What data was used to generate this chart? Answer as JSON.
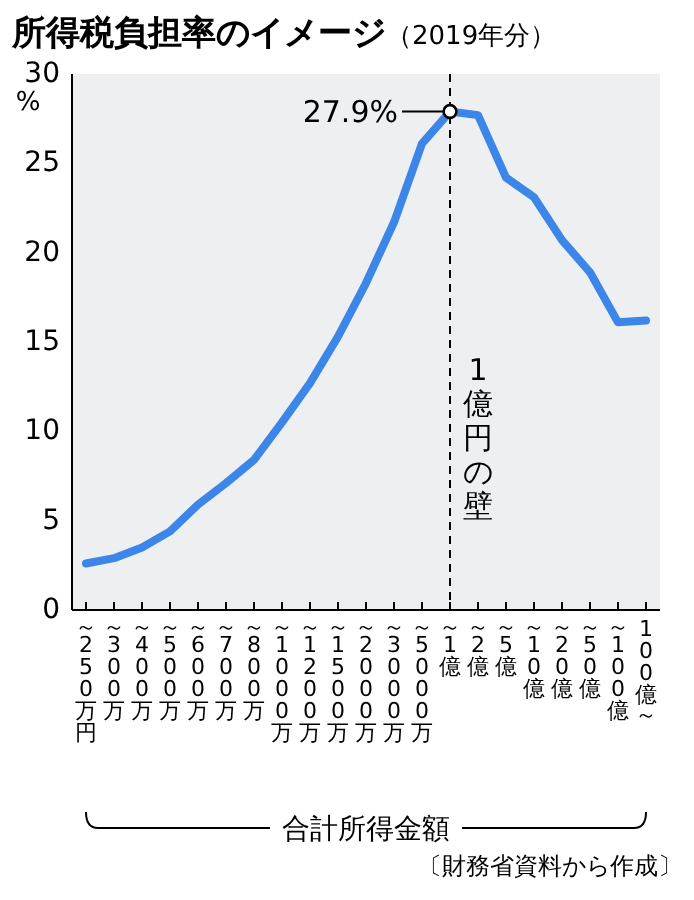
{
  "chart_data": {
    "type": "line",
    "title": "所得税負担率のイメージ",
    "subtitle": "（2019年分）",
    "ylabel": "%",
    "xlabel": "合計所得金額",
    "categories": [
      "～250万円",
      "～300万",
      "～400万",
      "～500万",
      "～600万",
      "～700万",
      "～800万",
      "～1000万",
      "～1200万",
      "～1500万",
      "～2000万",
      "～3000万",
      "～5000万",
      "～1億",
      "～2億",
      "～5億",
      "～10億",
      "～20億",
      "～50億",
      "～100億",
      "100億～"
    ],
    "series": [
      {
        "color": "#3b86e8",
        "values": [
          2.6,
          2.9,
          3.5,
          4.4,
          5.9,
          7.1,
          8.4,
          10.5,
          12.7,
          15.3,
          18.3,
          21.7,
          26.1,
          27.9,
          27.7,
          24.2,
          23.1,
          20.7,
          18.9,
          16.1,
          16.2
        ]
      }
    ],
    "ylim": [
      0,
      30
    ],
    "yticks": [
      0,
      5,
      10,
      15,
      20,
      25,
      30
    ],
    "grid": false,
    "marker": "none",
    "line_style": "solid",
    "ref_lines": [
      {
        "axis": "x",
        "value": "～1億",
        "label": "1億円の壁",
        "line_style": "dashed",
        "color": "#000000"
      }
    ],
    "annotations": [
      {
        "text": "27.9%",
        "x": "～1億",
        "y": 27.9
      },
      "〔財務省資料から作成〕"
    ]
  }
}
